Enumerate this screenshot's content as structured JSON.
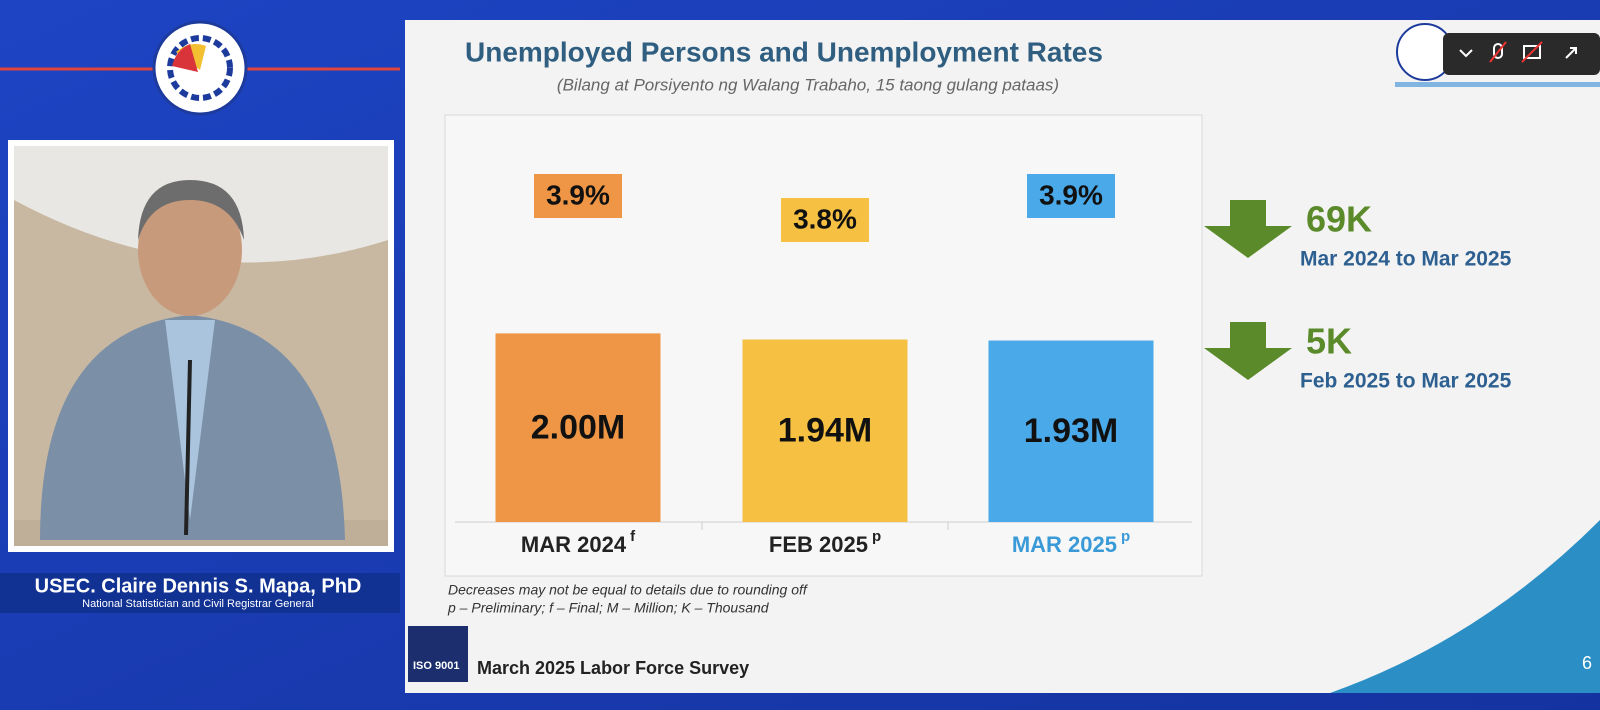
{
  "presenter": {
    "name": "USEC. Claire Dennis S. Mapa, PhD",
    "role": "National Statistician and Civil Registrar General"
  },
  "chart_data": {
    "type": "bar",
    "title": "Unemployed Persons and Unemployment Rates",
    "subtitle": "(Bilang at Porsiyento ng Walang Trabaho, 15 taong gulang pataas)",
    "categories": [
      "MAR 2024",
      "FEB 2025",
      "MAR 2025"
    ],
    "category_marks": [
      "f",
      "p",
      "p"
    ],
    "values": [
      2.0,
      1.94,
      1.93
    ],
    "value_labels": [
      "2.00M",
      "1.94M",
      "1.93M"
    ],
    "colors": [
      "#ee9645",
      "#f6c142",
      "#4aa9e9"
    ],
    "rates": [
      3.9,
      3.8,
      3.9
    ],
    "rate_labels": [
      "3.9%",
      "3.8%",
      "3.9%"
    ],
    "ylim": [
      0.15,
      2.2
    ],
    "y2lim": [
      3.0,
      4.0
    ],
    "annotations": [
      {
        "value": "69K",
        "period": "Mar 2024 to Mar 2025"
      },
      {
        "value": "5K",
        "period": "Feb 2025 to Mar 2025"
      }
    ],
    "notes": [
      "Decreases may not be equal to details due to rounding off",
      "p – Preliminary; f – Final; M – Million; K – Thousand"
    ]
  },
  "footer": {
    "survey": "March 2025 Labor Force Survey",
    "iso": "ISO 9001",
    "page": "6"
  }
}
